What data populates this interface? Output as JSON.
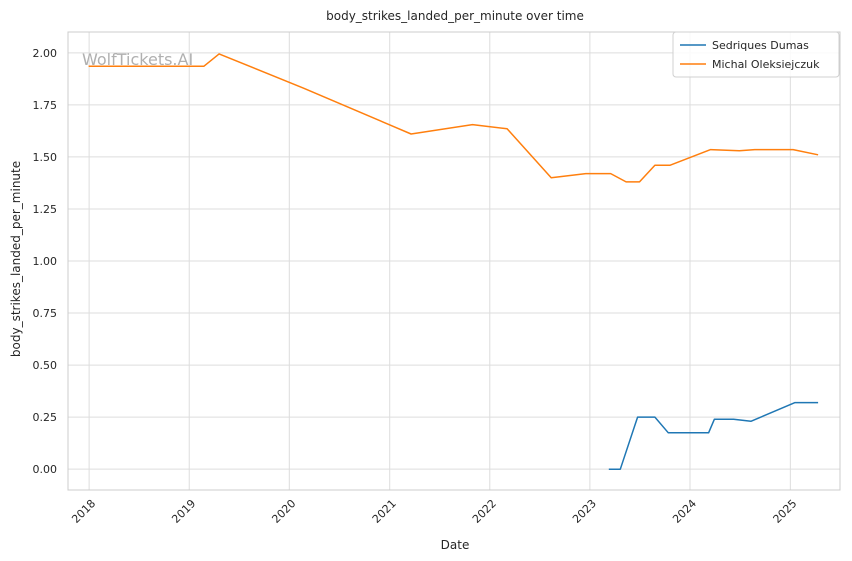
{
  "watermark": "WolfTickets.AI",
  "chart_data": {
    "type": "line",
    "title": "body_strikes_landed_per_minute over time",
    "xlabel": "Date",
    "ylabel": "body_strikes_landed_per_minute",
    "x_ticks": [
      "2018",
      "2019",
      "2020",
      "2021",
      "2022",
      "2023",
      "2024",
      "2025"
    ],
    "y_ticks": [
      "0.00",
      "0.25",
      "0.50",
      "0.75",
      "1.00",
      "1.25",
      "1.50",
      "1.75",
      "2.00"
    ],
    "xlim": [
      "2017-10-16",
      "2025-07-01"
    ],
    "ylim": [
      -0.1,
      2.1
    ],
    "grid": true,
    "legend_position": "top-right",
    "series": [
      {
        "name": "Sedriques Dumas",
        "color": "#1f77b4",
        "points": [
          [
            "2023-03-11",
            0.0
          ],
          [
            "2023-04-22",
            0.0
          ],
          [
            "2023-06-24",
            0.25
          ],
          [
            "2023-08-26",
            0.25
          ],
          [
            "2023-10-14",
            0.175
          ],
          [
            "2024-03-09",
            0.175
          ],
          [
            "2024-03-30",
            0.24
          ],
          [
            "2024-06-08",
            0.24
          ],
          [
            "2024-08-10",
            0.23
          ],
          [
            "2025-01-18",
            0.32
          ],
          [
            "2025-04-12",
            0.32
          ]
        ]
      },
      {
        "name": "Michal Oleksiejczuk",
        "color": "#ff7f0e",
        "points": [
          [
            "2017-12-30",
            1.935
          ],
          [
            "2019-02-23",
            1.935
          ],
          [
            "2019-04-20",
            1.995
          ],
          [
            "2020-02-22",
            1.83
          ],
          [
            "2021-03-20",
            1.61
          ],
          [
            "2021-10-30",
            1.655
          ],
          [
            "2022-03-05",
            1.635
          ],
          [
            "2022-08-13",
            1.4
          ],
          [
            "2022-12-17",
            1.42
          ],
          [
            "2023-03-18",
            1.42
          ],
          [
            "2023-05-13",
            1.38
          ],
          [
            "2023-07-01",
            1.38
          ],
          [
            "2023-08-26",
            1.46
          ],
          [
            "2023-10-21",
            1.46
          ],
          [
            "2024-03-16",
            1.535
          ],
          [
            "2024-06-29",
            1.53
          ],
          [
            "2024-08-24",
            1.535
          ],
          [
            "2025-01-11",
            1.535
          ],
          [
            "2025-04-12",
            1.51
          ]
        ]
      }
    ]
  }
}
